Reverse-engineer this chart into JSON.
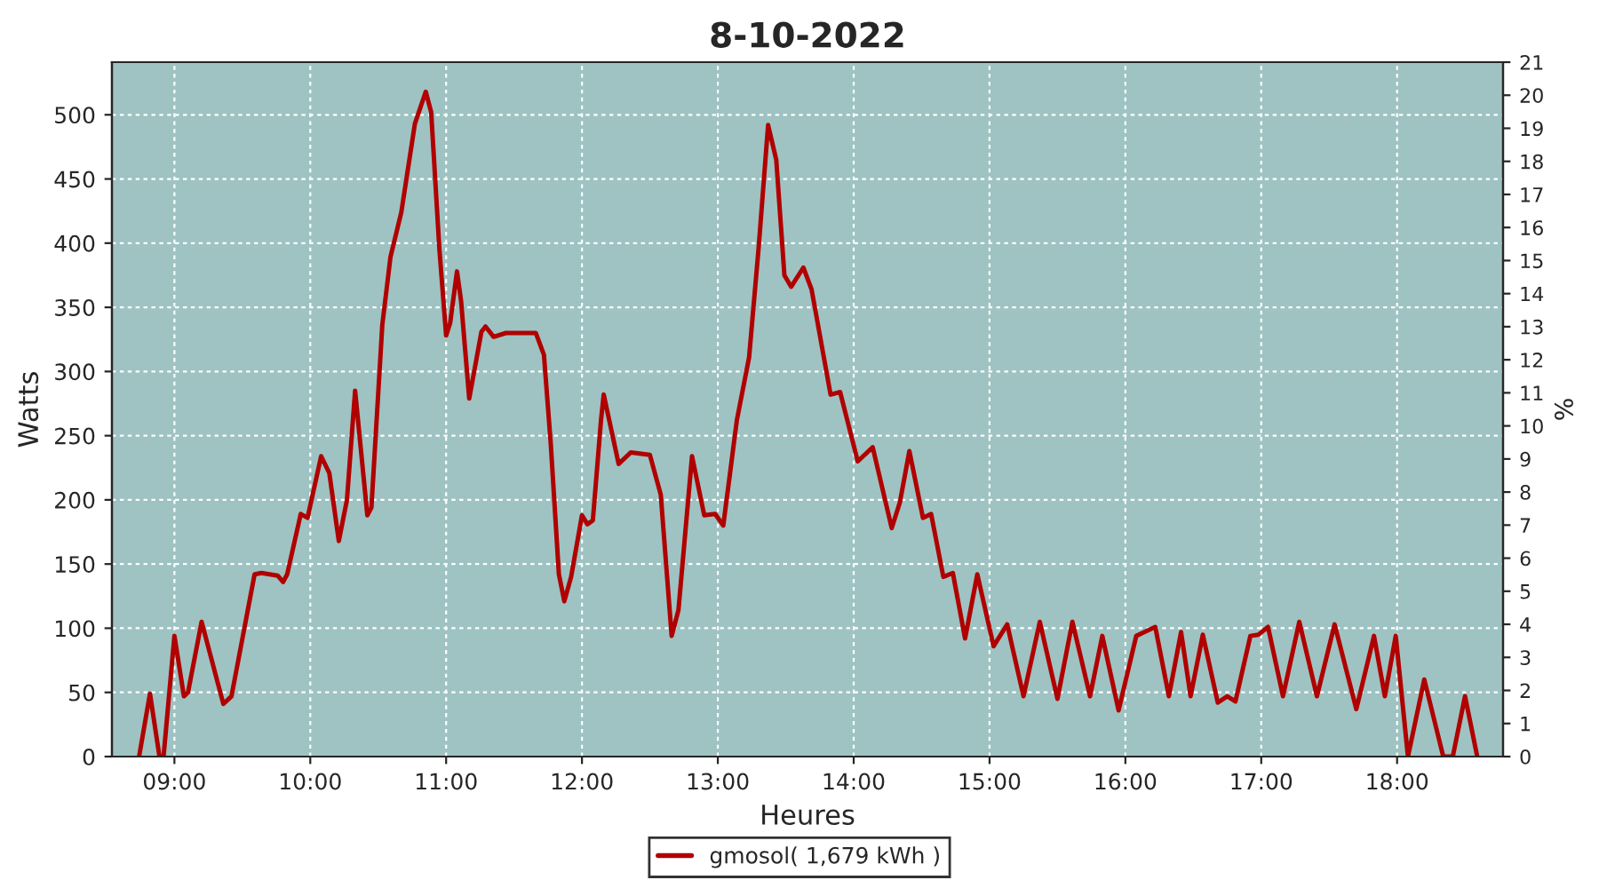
{
  "chart_data": {
    "type": "line",
    "title": "8-10-2022",
    "xlabel": "Heures",
    "ylabel": "Watts",
    "y2label": "%",
    "x": [
      8.74,
      8.82,
      8.89,
      8.92,
      9.0,
      9.07,
      9.1,
      9.2,
      9.36,
      9.42,
      9.59,
      9.64,
      9.76,
      9.8,
      9.83,
      9.93,
      9.98,
      10.08,
      10.14,
      10.21,
      10.27,
      10.33,
      10.42,
      10.45,
      10.53,
      10.59,
      10.67,
      10.77,
      10.85,
      10.89,
      10.95,
      11.0,
      11.03,
      11.08,
      11.11,
      11.17,
      11.26,
      11.29,
      11.35,
      11.44,
      11.66,
      11.72,
      11.77,
      11.83,
      11.87,
      11.92,
      12.0,
      12.04,
      12.08,
      12.14,
      12.16,
      12.27,
      12.36,
      12.5,
      12.58,
      12.66,
      12.71,
      12.81,
      12.9,
      12.98,
      13.04,
      13.14,
      13.23,
      13.3,
      13.37,
      13.43,
      13.49,
      13.54,
      13.63,
      13.69,
      13.83,
      13.9,
      14.03,
      14.14,
      14.28,
      14.34,
      14.41,
      14.51,
      14.57,
      14.66,
      14.73,
      14.82,
      14.91,
      15.03,
      15.13,
      15.25,
      15.37,
      15.5,
      15.61,
      15.74,
      15.83,
      15.95,
      16.08,
      16.14,
      16.22,
      16.32,
      16.41,
      16.48,
      16.57,
      16.68,
      16.75,
      16.81,
      16.92,
      16.98,
      17.05,
      17.16,
      17.28,
      17.41,
      17.54,
      17.7,
      17.83,
      17.91,
      17.99,
      18.08,
      18.2,
      18.34,
      18.41,
      18.5,
      18.59
    ],
    "series": [
      {
        "name": "gmosol( 1,679 kWh )",
        "color": "#b00000",
        "values": [
          0,
          49,
          0,
          0,
          94,
          47,
          50,
          105,
          41,
          47,
          142,
          143,
          141,
          136,
          142,
          189,
          186,
          234,
          221,
          168,
          200,
          285,
          188,
          194,
          336,
          389,
          424,
          493,
          518,
          502,
          396,
          328,
          338,
          378,
          355,
          279,
          331,
          335,
          327,
          330,
          330,
          313,
          244,
          142,
          121,
          140,
          188,
          181,
          184,
          262,
          282,
          228,
          237,
          235,
          204,
          94,
          114,
          234,
          188,
          189,
          180,
          262,
          311,
          396,
          492,
          465,
          375,
          366,
          381,
          364,
          282,
          284,
          230,
          241,
          178,
          198,
          238,
          186,
          189,
          140,
          143,
          92,
          142,
          86,
          103,
          47,
          105,
          45,
          105,
          47,
          94,
          36,
          94,
          97,
          101,
          47,
          97,
          47,
          95,
          42,
          47,
          43,
          94,
          95,
          101,
          47,
          105,
          47,
          103,
          37,
          94,
          47,
          94,
          0,
          60,
          0,
          0,
          47,
          0
        ]
      }
    ],
    "xlim": [
      8.54,
      18.78
    ],
    "xticks": [
      {
        "value": 9,
        "label": "09:00"
      },
      {
        "value": 10,
        "label": "10:00"
      },
      {
        "value": 11,
        "label": "11:00"
      },
      {
        "value": 12,
        "label": "12:00"
      },
      {
        "value": 13,
        "label": "13:00"
      },
      {
        "value": 14,
        "label": "14:00"
      },
      {
        "value": 15,
        "label": "15:00"
      },
      {
        "value": 16,
        "label": "16:00"
      },
      {
        "value": 17,
        "label": "17:00"
      },
      {
        "value": 18,
        "label": "18:00"
      }
    ],
    "ylim": [
      0,
      541
    ],
    "yticks": [
      0,
      50,
      100,
      150,
      200,
      250,
      300,
      350,
      400,
      450,
      500
    ],
    "y2lim": [
      0,
      21
    ],
    "y2ticks": [
      0,
      1,
      2,
      3,
      4,
      5,
      6,
      7,
      8,
      9,
      10,
      11,
      12,
      13,
      14,
      15,
      16,
      17,
      18,
      19,
      20,
      21
    ],
    "grid": true,
    "legend": "bottom",
    "marker": "none",
    "line_style": "solid"
  }
}
